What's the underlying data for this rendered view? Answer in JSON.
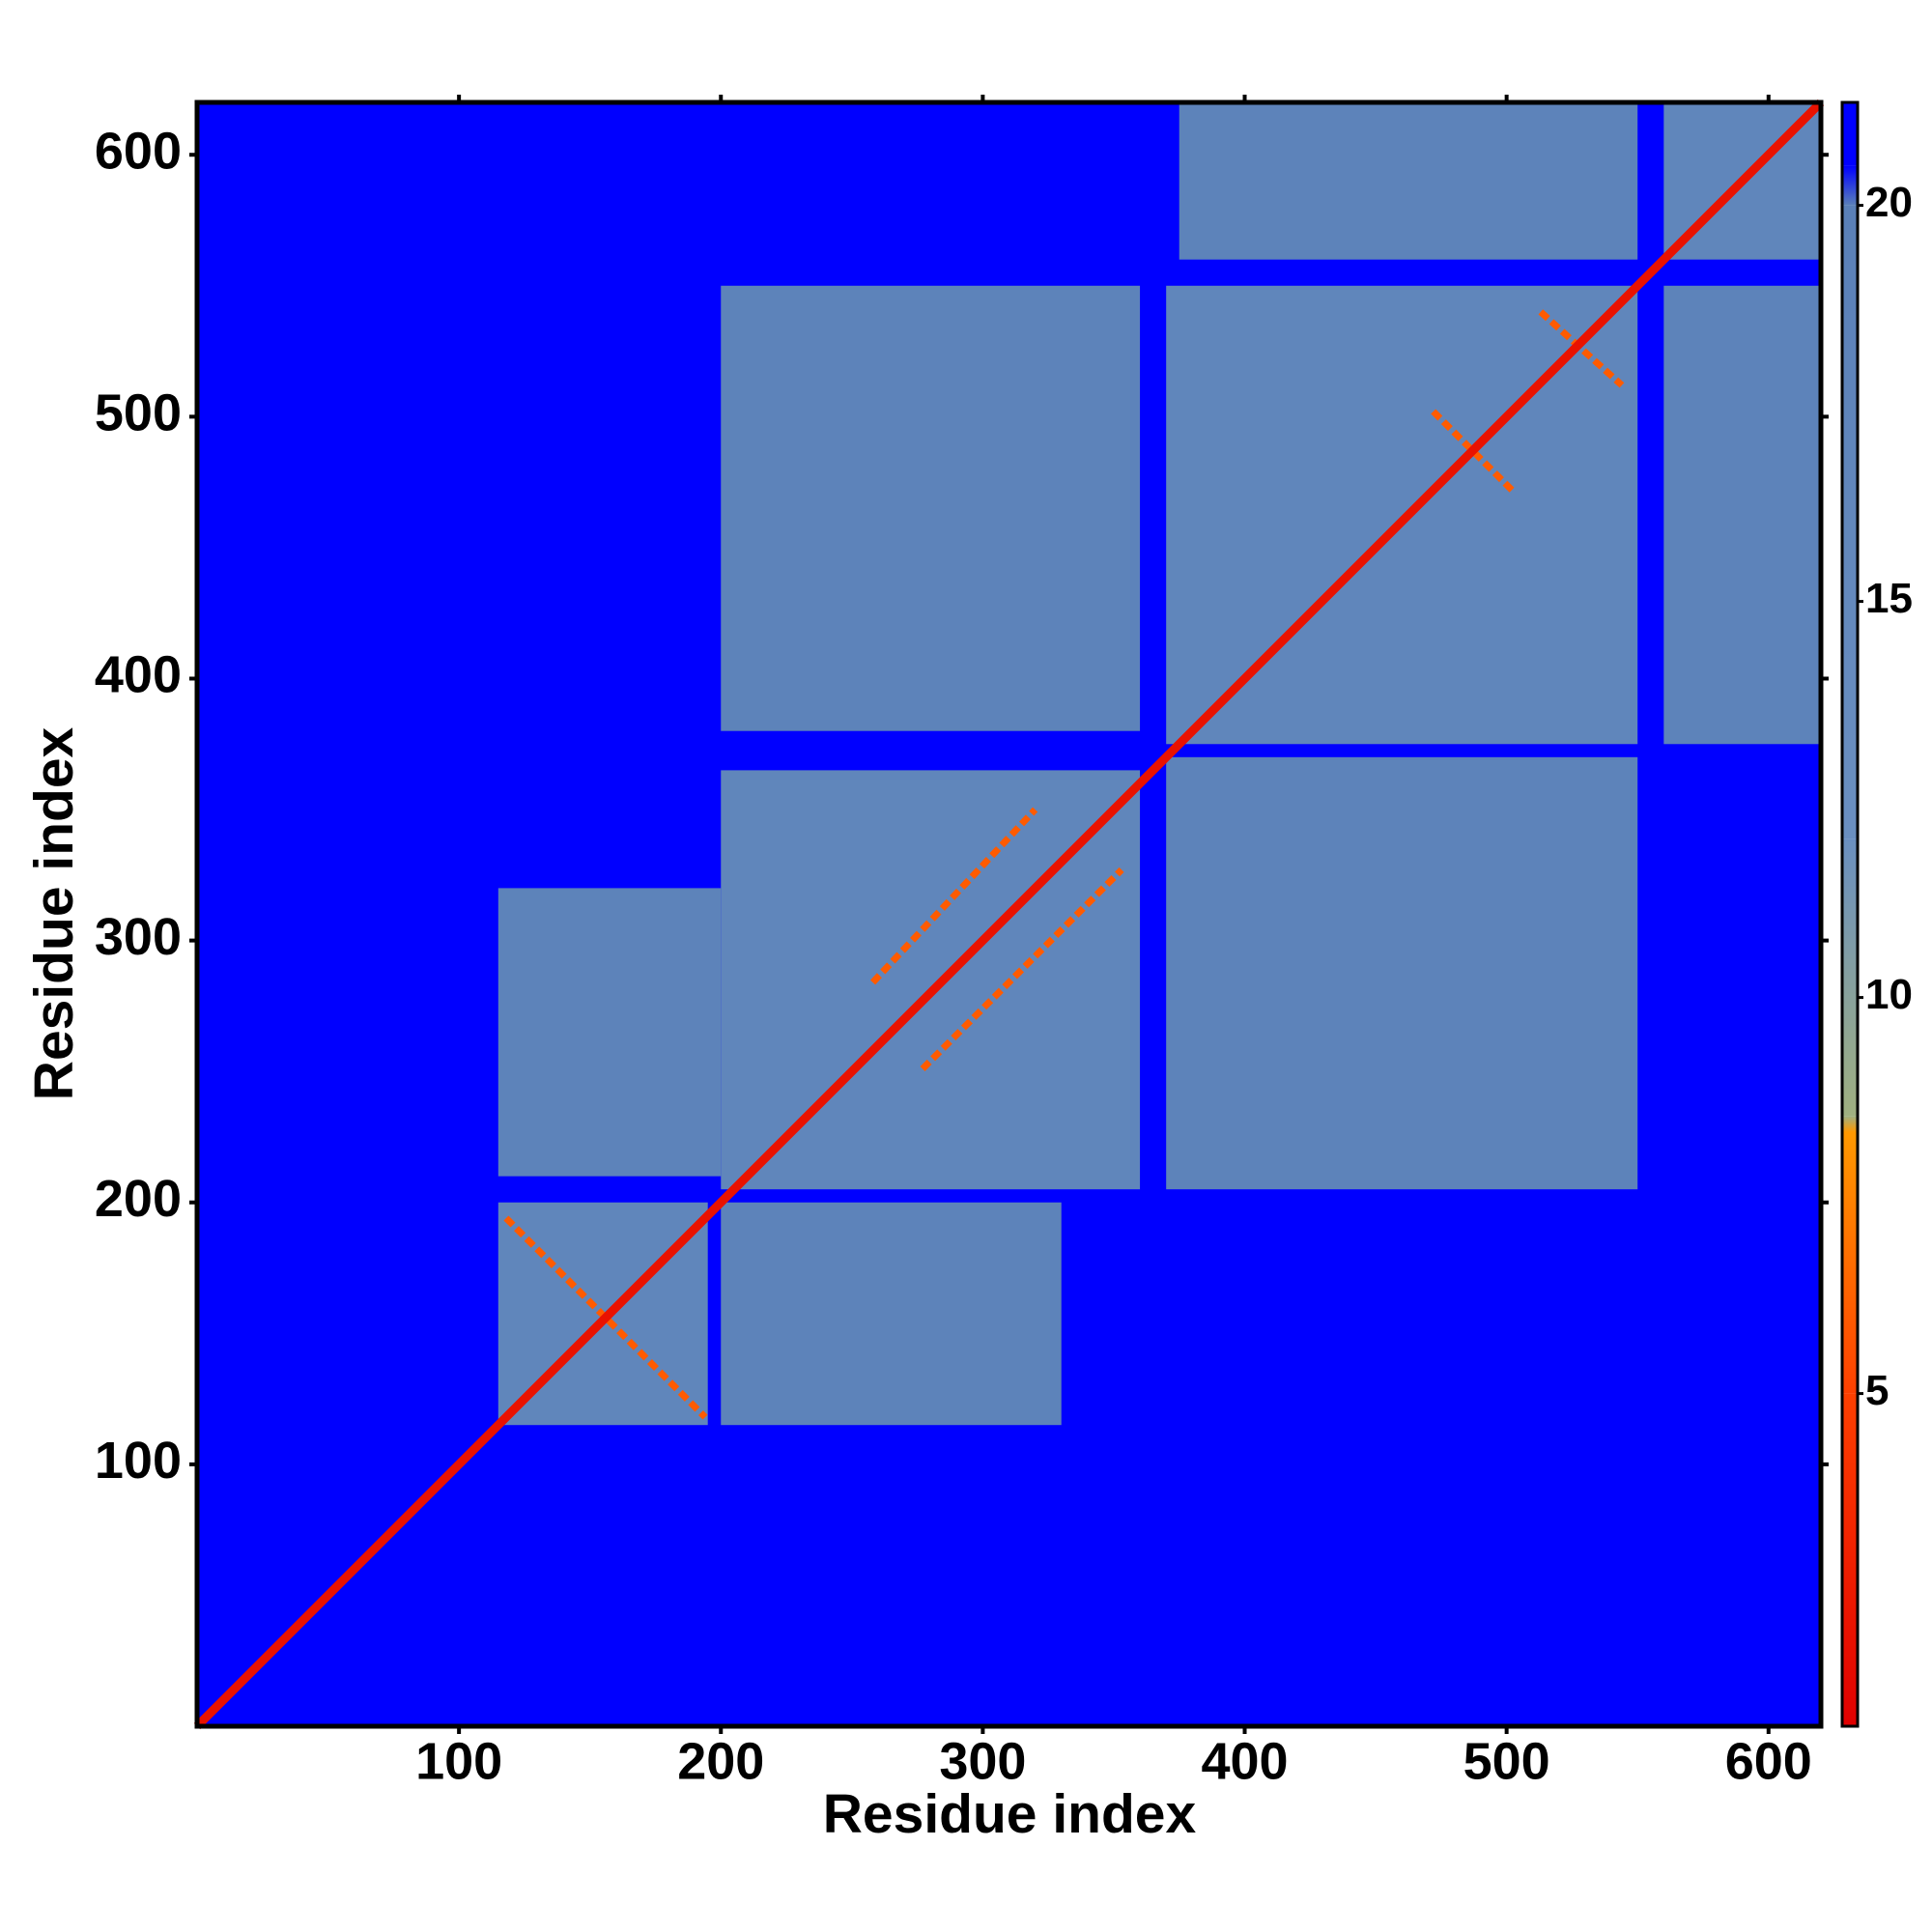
{
  "chart_data": {
    "type": "heatmap",
    "xlabel": "Residue index",
    "ylabel": "Residue index",
    "xlim": [
      0,
      620
    ],
    "ylim": [
      0,
      620
    ],
    "xticks": [
      100,
      200,
      300,
      400,
      500,
      600
    ],
    "yticks": [
      100,
      200,
      300,
      400,
      500,
      600
    ],
    "background_value": 21,
    "cells": [
      {
        "x0": 115,
        "x1": 200,
        "y0": 210,
        "y1": 320,
        "value": 18.5
      },
      {
        "x0": 200,
        "x1": 330,
        "y0": 115,
        "y1": 200,
        "value": 18.5
      },
      {
        "x0": 200,
        "x1": 360,
        "y0": 380,
        "y1": 550,
        "value": 18.5
      },
      {
        "x0": 370,
        "x1": 550,
        "y0": 205,
        "y1": 370,
        "value": 18.5
      },
      {
        "x0": 375,
        "x1": 550,
        "y0": 560,
        "y1": 620,
        "value": 18.5
      },
      {
        "x0": 560,
        "x1": 620,
        "y0": 375,
        "y1": 550,
        "value": 18.5
      },
      {
        "x0": 115,
        "x1": 195,
        "y0": 115,
        "y1": 200,
        "value": 17
      },
      {
        "x0": 200,
        "x1": 360,
        "y0": 205,
        "y1": 365,
        "value": 17
      },
      {
        "x0": 370,
        "x1": 550,
        "y0": 375,
        "y1": 550,
        "value": 17
      },
      {
        "x0": 560,
        "x1": 620,
        "y0": 560,
        "y1": 620,
        "value": 17
      }
    ],
    "contacts": [
      {
        "x0": 118,
        "x1": 194,
        "y0": 194,
        "y1": 118,
        "value": 6
      },
      {
        "x0": 258,
        "x1": 320,
        "y0": 284,
        "y1": 350,
        "value": 6
      },
      {
        "x0": 277,
        "x1": 353,
        "y0": 251,
        "y1": 327,
        "value": 6
      },
      {
        "x0": 472,
        "x1": 503,
        "y0": 502,
        "y1": 471,
        "value": 6
      },
      {
        "x0": 513,
        "x1": 544,
        "y0": 540,
        "y1": 512,
        "value": 6
      }
    ],
    "diagonal": {
      "value": 2
    },
    "colorbar_lim": [
      0.8,
      21.3
    ],
    "colorbar_ticks": [
      5,
      10,
      15,
      20
    ],
    "colorscale": [
      {
        "value": 0.8,
        "color": "#e00000"
      },
      {
        "value": 5,
        "color": "#ff4000"
      },
      {
        "value": 8.3,
        "color": "#ff9900"
      },
      {
        "value": 8.5,
        "color": "#a0b080"
      },
      {
        "value": 12,
        "color": "#6a8fc0"
      },
      {
        "value": 20,
        "color": "#5a80b8"
      },
      {
        "value": 20.5,
        "color": "#0000ff"
      },
      {
        "value": 21.3,
        "color": "#0000ff"
      }
    ]
  }
}
